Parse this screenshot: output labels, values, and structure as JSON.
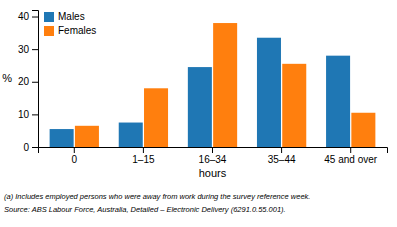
{
  "chart_data": {
    "type": "bar",
    "categories": [
      "0",
      "1–15",
      "16–34",
      "35–44",
      "45 and over"
    ],
    "series": [
      {
        "name": "Males",
        "values": [
          5.5,
          7.5,
          24.5,
          33.5,
          28.0
        ]
      },
      {
        "name": "Females",
        "values": [
          6.5,
          18.0,
          38.0,
          25.5,
          10.5
        ]
      }
    ],
    "xlabel": "hours",
    "ylabel": "%",
    "ylim": [
      0,
      42
    ],
    "yticks": [
      0,
      10,
      20,
      30,
      40
    ],
    "legend": "top-left",
    "annotations": [
      "(a) Includes employed persons who were away from work during the survey reference week.",
      "Source: ABS Labour Force, Australia, Detailed – Electronic Delivery (6291.0.55.001)."
    ]
  }
}
